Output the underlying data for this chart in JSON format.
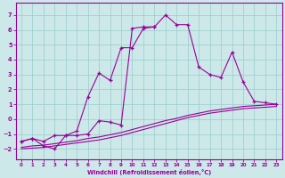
{
  "bg_color": "#cce8e8",
  "grid_color": "#99cccc",
  "line_color": "#990099",
  "xlabel": "Windchill (Refroidissement éolien,°C)",
  "x_ticks": [
    0,
    1,
    2,
    3,
    4,
    5,
    6,
    7,
    8,
    9,
    10,
    11,
    12,
    13,
    14,
    15,
    16,
    17,
    18,
    19,
    20,
    21,
    22,
    23
  ],
  "y_ticks": [
    -2,
    -1,
    0,
    1,
    2,
    3,
    4,
    5,
    6,
    7
  ],
  "ylim": [
    -2.7,
    7.8
  ],
  "xlim": [
    -0.5,
    23.5
  ],
  "line1_x": [
    0,
    1,
    2,
    3,
    4,
    5,
    6,
    7,
    8,
    9,
    10,
    11,
    12,
    13,
    14,
    15,
    16,
    17,
    18,
    19,
    20,
    21,
    22,
    23
  ],
  "line1_y": [
    -1.5,
    -1.3,
    -1.8,
    -2.0,
    -1.1,
    -1.1,
    -1.0,
    -0.1,
    -0.2,
    -0.4,
    6.1,
    6.2,
    6.2,
    7.0,
    6.35,
    6.35,
    3.5,
    3.0,
    2.8,
    4.5,
    2.5,
    1.2,
    1.1,
    1.0
  ],
  "line2_x": [
    0,
    1,
    2,
    3,
    4,
    5,
    6,
    7,
    8,
    9,
    10,
    11,
    12
  ],
  "line2_y": [
    -1.5,
    -1.3,
    -1.5,
    -1.1,
    -1.1,
    -0.8,
    1.5,
    3.1,
    2.6,
    4.8,
    4.8,
    6.1,
    6.2
  ],
  "line3a_x": [
    0,
    1,
    2,
    3,
    4,
    5,
    6,
    7,
    8,
    9,
    10,
    11,
    12,
    13,
    14,
    15,
    16,
    17,
    18,
    19,
    20,
    21,
    22,
    23
  ],
  "line3a_y": [
    -1.9,
    -1.8,
    -1.75,
    -1.65,
    -1.55,
    -1.45,
    -1.3,
    -1.2,
    -1.05,
    -0.9,
    -0.7,
    -0.5,
    -0.3,
    -0.1,
    0.05,
    0.25,
    0.4,
    0.55,
    0.65,
    0.75,
    0.85,
    0.9,
    0.95,
    1.0
  ],
  "line3b_x": [
    0,
    1,
    2,
    3,
    4,
    5,
    6,
    7,
    8,
    9,
    10,
    11,
    12,
    13,
    14,
    15,
    16,
    17,
    18,
    19,
    20,
    21,
    22,
    23
  ],
  "line3b_y": [
    -2.0,
    -1.95,
    -1.9,
    -1.8,
    -1.7,
    -1.6,
    -1.5,
    -1.4,
    -1.25,
    -1.1,
    -0.9,
    -0.7,
    -0.5,
    -0.3,
    -0.1,
    0.1,
    0.25,
    0.4,
    0.5,
    0.6,
    0.7,
    0.75,
    0.8,
    0.85
  ]
}
